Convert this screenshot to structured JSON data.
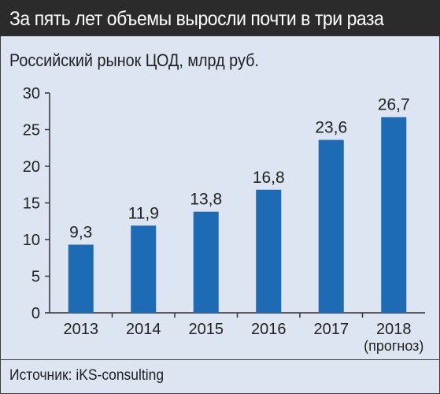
{
  "header": {
    "title": "За пять лет объемы выросли почти в три раза"
  },
  "footer": {
    "source": "Источник: iKS-consulting"
  },
  "colors": {
    "bar": "#1d6ab5",
    "header_bg": "#2b2b2b",
    "background": "#dce5f1"
  },
  "chart_data": {
    "type": "bar",
    "title": "Российский рынок ЦОД, млрд руб.",
    "xlabel": "",
    "ylabel": "",
    "categories": [
      "2013",
      "2014",
      "2015",
      "2016",
      "2017",
      "2018"
    ],
    "category_notes": [
      "",
      "",
      "",
      "",
      "",
      "(прогноз)"
    ],
    "values": [
      9.3,
      11.9,
      13.8,
      16.8,
      23.6,
      26.7
    ],
    "value_labels": [
      "9,3",
      "11,9",
      "13,8",
      "16,8",
      "23,6",
      "26,7"
    ],
    "ylim": [
      0,
      30
    ],
    "yticks": [
      0,
      5,
      10,
      15,
      20,
      25,
      30
    ],
    "grid": false,
    "legend": "none"
  }
}
